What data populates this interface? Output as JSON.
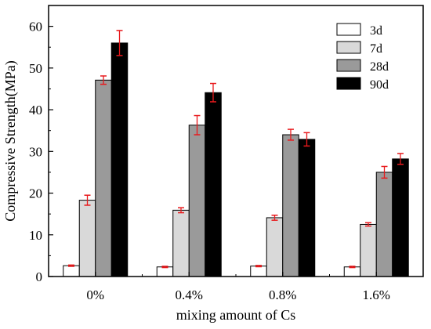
{
  "chart_data": {
    "type": "bar",
    "xlabel": "mixing amount of Cs",
    "ylabel": "Compressive Strength(MPa)",
    "ylim": [
      0,
      65
    ],
    "yticks": [
      0,
      10,
      20,
      30,
      40,
      50,
      60
    ],
    "grid": false,
    "legend_position": "top-right",
    "categories": [
      "0%",
      "0.4%",
      "0.8%",
      "1.6%"
    ],
    "series": [
      {
        "name": "3d",
        "color": "#ffffff",
        "values": [
          2.6,
          2.3,
          2.5,
          2.3
        ],
        "errors": [
          0.15,
          0.15,
          0.15,
          0.15
        ]
      },
      {
        "name": "7d",
        "color": "#d9d9d9",
        "values": [
          18.3,
          15.9,
          14.1,
          12.5
        ],
        "errors": [
          1.2,
          0.6,
          0.6,
          0.4
        ]
      },
      {
        "name": "28d",
        "color": "#9a9a9a",
        "values": [
          47.1,
          36.3,
          34.0,
          25.0
        ],
        "errors": [
          1.0,
          2.3,
          1.3,
          1.4
        ]
      },
      {
        "name": "90d",
        "color": "#000000",
        "values": [
          56.0,
          44.1,
          32.9,
          28.2
        ],
        "errors": [
          3.0,
          2.2,
          1.6,
          1.3
        ]
      }
    ],
    "error_bar_color": "#e8191c"
  }
}
